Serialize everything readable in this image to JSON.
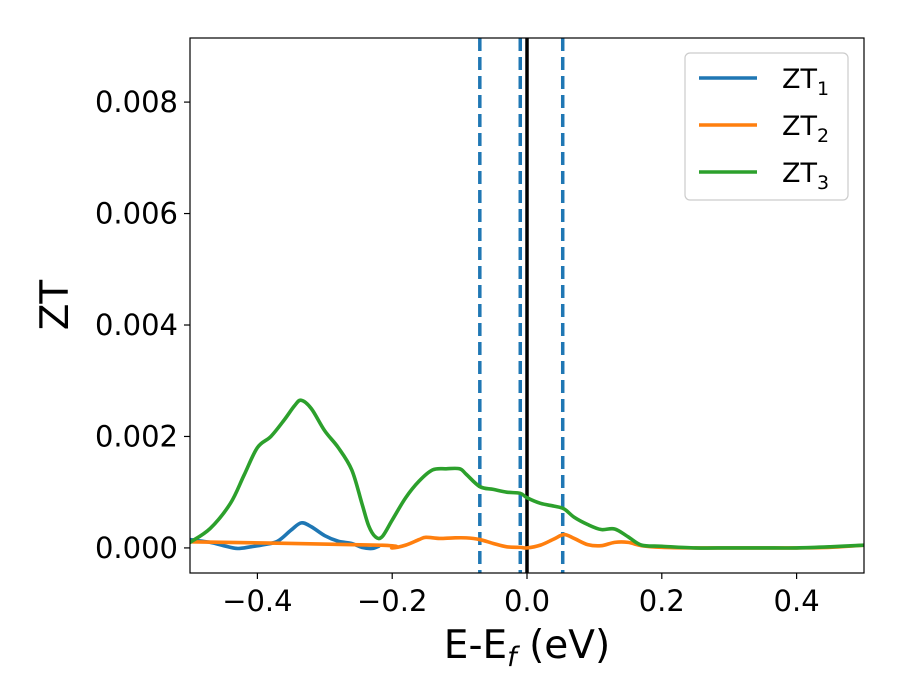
{
  "chart_data": {
    "type": "line",
    "xlabel": {
      "main": "E-E",
      "subscript": "f",
      "suffix": " (eV)"
    },
    "ylabel": "ZT",
    "xlim": [
      -0.5,
      0.5
    ],
    "ylim": [
      -0.00045,
      0.00915
    ],
    "xticks": [
      -0.4,
      -0.2,
      0.0,
      0.2,
      0.4
    ],
    "xtick_labels": [
      "−0.4",
      "−0.2",
      "0.0",
      "0.2",
      "0.4"
    ],
    "yticks": [
      0.0,
      0.002,
      0.004,
      0.006,
      0.008
    ],
    "ytick_labels": [
      "0.000",
      "0.002",
      "0.004",
      "0.006",
      "0.008"
    ],
    "grid": false,
    "legend_position": "top-right",
    "vlines": [
      {
        "x": -0.07,
        "style": "dashed",
        "color": "#1f77b4"
      },
      {
        "x": -0.01,
        "style": "dashed",
        "color": "#1f77b4"
      },
      {
        "x": 0.0,
        "style": "solid",
        "color": "#000000"
      },
      {
        "x": 0.053,
        "style": "dashed",
        "color": "#1f77b4"
      }
    ],
    "series": [
      {
        "name": "ZT",
        "subscript": "1",
        "color": "#1f77b4",
        "x": [
          -0.5,
          -0.47,
          -0.45,
          -0.43,
          -0.41,
          -0.39,
          -0.37,
          -0.35,
          -0.335,
          -0.32,
          -0.3,
          -0.28,
          -0.26,
          -0.245,
          -0.23,
          -0.22
        ],
        "y": [
          0.00015,
          0.0001,
          4e-05,
          -1e-05,
          2e-05,
          6e-05,
          0.00012,
          0.00032,
          0.00045,
          0.00038,
          0.00022,
          0.00012,
          8e-05,
          1e-05,
          -1e-05,
          3e-05
        ]
      },
      {
        "name": "ZT",
        "subscript": "2",
        "color": "#ff7f0e",
        "x": [
          -0.5,
          -0.22,
          -0.2,
          -0.18,
          -0.16,
          -0.15,
          -0.13,
          -0.11,
          -0.09,
          -0.07,
          -0.05,
          -0.03,
          -0.01,
          0.0,
          0.02,
          0.04,
          0.055,
          0.07,
          0.09,
          0.11,
          0.13,
          0.15,
          0.17,
          0.2,
          0.25,
          0.3,
          0.35,
          0.4,
          0.45,
          0.5
        ],
        "y": [
          0.00011,
          5e-05,
          0.0,
          5e-05,
          0.00015,
          0.00019,
          0.00017,
          0.00018,
          0.00018,
          0.00015,
          8e-05,
          2e-05,
          1e-05,
          0.0,
          5e-05,
          0.00016,
          0.00024,
          0.00017,
          6e-05,
          4e-05,
          0.0001,
          0.0001,
          4e-05,
          1e-05,
          0.0,
          0.0,
          0.0,
          0.0,
          1e-05,
          5e-05
        ]
      },
      {
        "name": "ZT",
        "subscript": "3",
        "color": "#2ca02c",
        "x": [
          -0.5,
          -0.47,
          -0.44,
          -0.42,
          -0.4,
          -0.38,
          -0.36,
          -0.345,
          -0.335,
          -0.32,
          -0.3,
          -0.28,
          -0.26,
          -0.245,
          -0.235,
          -0.225,
          -0.215,
          -0.2,
          -0.18,
          -0.16,
          -0.14,
          -0.12,
          -0.1,
          -0.09,
          -0.07,
          -0.05,
          -0.03,
          -0.01,
          0.0,
          0.02,
          0.04,
          0.055,
          0.07,
          0.09,
          0.11,
          0.13,
          0.15,
          0.17,
          0.2,
          0.25,
          0.3,
          0.35,
          0.4,
          0.45,
          0.5
        ],
        "y": [
          0.0001,
          0.00035,
          0.0008,
          0.0013,
          0.0018,
          0.002,
          0.0023,
          0.00255,
          0.00265,
          0.0025,
          0.0021,
          0.0018,
          0.0014,
          0.0008,
          0.0004,
          0.0002,
          0.0002,
          0.0005,
          0.0009,
          0.0012,
          0.0014,
          0.00142,
          0.00142,
          0.00132,
          0.0011,
          0.00105,
          0.001,
          0.00098,
          0.0009,
          0.0008,
          0.00075,
          0.0007,
          0.00055,
          0.00042,
          0.00033,
          0.00034,
          0.0002,
          5e-05,
          3e-05,
          0.0,
          0.0,
          0.0,
          0.0,
          2e-05,
          5e-05
        ]
      }
    ]
  }
}
